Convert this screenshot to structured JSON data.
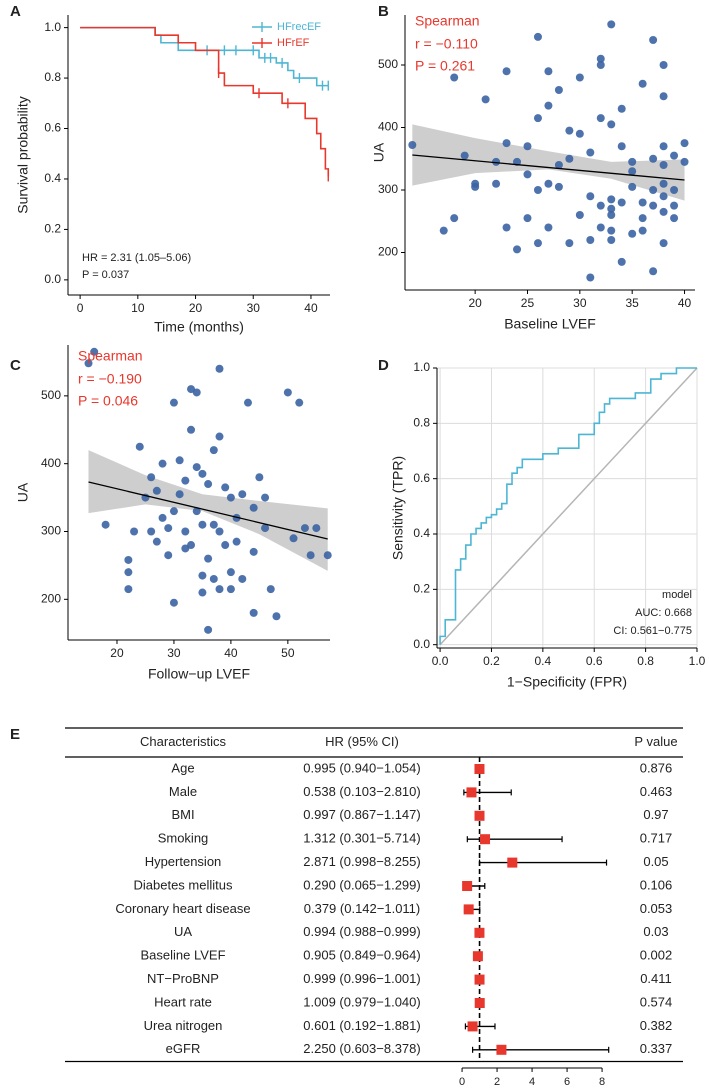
{
  "chart_data": [
    {
      "type": "step",
      "panel": "A",
      "xlabel": "Time (months)",
      "ylabel": "Survival probability",
      "xlim": [
        -2.1,
        43.3
      ],
      "xticks": [
        0,
        10,
        20,
        30,
        40
      ],
      "ylim": [
        -0.06,
        1.05
      ],
      "yticks": [
        {
          "value": 0,
          "label": "0.0"
        },
        {
          "value": 0.2,
          "label": "0.2"
        },
        {
          "value": 0.4,
          "label": "0.4"
        },
        {
          "value": 0.6,
          "label": "0.6"
        },
        {
          "value": 0.8,
          "label": "0.8"
        },
        {
          "value": 1,
          "label": "1.0"
        }
      ],
      "legend": "upper right",
      "annotations": [
        "HR = 2.31 (1.05–5.06)",
        "P = 0.037"
      ],
      "series": [
        {
          "name": "HFrecEF",
          "color": "#4db6d4",
          "x": [
            0,
            13,
            14,
            17,
            31,
            34,
            36,
            37,
            41
          ],
          "values": [
            1,
            0.97,
            0.94,
            0.91,
            0.88,
            0.86,
            0.83,
            0.8,
            0.77
          ],
          "censored": [
            22,
            25,
            27,
            30,
            32,
            33,
            35,
            38,
            42,
            43
          ]
        },
        {
          "name": "HFrEF",
          "color": "#e8372c",
          "x": [
            0,
            13,
            17,
            20,
            24,
            25,
            30,
            35,
            39,
            41,
            41.7,
            42.5,
            43
          ],
          "values": [
            1,
            0.97,
            0.94,
            0.91,
            0.82,
            0.77,
            0.74,
            0.7,
            0.64,
            0.58,
            0.52,
            0.44,
            0.41
          ],
          "censored": [
            24,
            31,
            36,
            43
          ]
        }
      ]
    },
    {
      "type": "scatter",
      "panel": "B",
      "xlabel": "Baseline LVEF",
      "ylabel": "UA",
      "xlim": [
        13.3,
        41
      ],
      "xticks": [
        20,
        25,
        30,
        35,
        40
      ],
      "ylim": [
        140,
        580
      ],
      "yticks": [
        200,
        300,
        400,
        500
      ],
      "annotations": [
        "Spearman",
        "r = −0.110",
        "P = 0.261"
      ],
      "annotation_color": "#e8372c",
      "color": "#3b64a3",
      "x": [
        14,
        17,
        18,
        18,
        19,
        20,
        20,
        21,
        22,
        22,
        23,
        23,
        23,
        24,
        24,
        25,
        25,
        25,
        26,
        26,
        26,
        26,
        27,
        27,
        27,
        27,
        28,
        28,
        28,
        29,
        29,
        29,
        30,
        30,
        30,
        31,
        31,
        31,
        31,
        32,
        32,
        32,
        32,
        32,
        33,
        33,
        33,
        33,
        33,
        33,
        33,
        34,
        34,
        34,
        34,
        35,
        35,
        35,
        35,
        36,
        36,
        36,
        36,
        37,
        37,
        37,
        37,
        37,
        38,
        38,
        38,
        38,
        38,
        38,
        38,
        38,
        39,
        39,
        39,
        39,
        40,
        40
      ],
      "values": [
        372,
        235,
        255,
        480,
        355,
        305,
        310,
        445,
        310,
        345,
        375,
        490,
        240,
        205,
        345,
        325,
        370,
        255,
        545,
        415,
        300,
        215,
        490,
        435,
        310,
        240,
        305,
        340,
        460,
        395,
        350,
        215,
        390,
        480,
        260,
        360,
        290,
        220,
        160,
        510,
        415,
        275,
        240,
        500,
        565,
        405,
        285,
        270,
        260,
        235,
        220,
        430,
        370,
        280,
        185,
        345,
        305,
        230,
        330,
        280,
        470,
        255,
        235,
        540,
        350,
        275,
        170,
        300,
        500,
        450,
        370,
        340,
        310,
        290,
        265,
        215,
        355,
        300,
        275,
        255,
        375,
        345
      ],
      "fit": {
        "x": [
          14,
          40
        ],
        "values": [
          356,
          316
        ]
      },
      "ci": {
        "x": [
          14,
          20,
          27,
          33,
          40
        ],
        "lower": [
          307,
          327,
          333,
          318,
          283
        ],
        "upper": [
          405,
          383,
          362,
          345,
          349
        ]
      }
    },
    {
      "type": "scatter",
      "panel": "C",
      "xlabel": "Follow−up LVEF",
      "ylabel": "UA",
      "xlim": [
        11.4,
        57.4
      ],
      "xticks": [
        20,
        30,
        40,
        50
      ],
      "ylim": [
        140,
        575
      ],
      "yticks": [
        200,
        300,
        400,
        500
      ],
      "annotations": [
        "Spearman",
        "r = −0.190",
        "P = 0.046"
      ],
      "annotation_color": "#e8372c",
      "color": "#3b64a3",
      "x": [
        15,
        16,
        18,
        22,
        22,
        22,
        23,
        24,
        25,
        26,
        26,
        27,
        27,
        28,
        28,
        29,
        29,
        30,
        30,
        30,
        31,
        31,
        32,
        32,
        32,
        33,
        33,
        33,
        34,
        34,
        34,
        35,
        35,
        35,
        35,
        36,
        36,
        36,
        37,
        37,
        37,
        38,
        38,
        38,
        38,
        39,
        39,
        40,
        40,
        40,
        41,
        41,
        42,
        42,
        43,
        44,
        44,
        44,
        45,
        46,
        46,
        47,
        48,
        50,
        51,
        52,
        53,
        54,
        55,
        57
      ],
      "values": [
        548,
        565,
        310,
        258,
        240,
        215,
        300,
        425,
        350,
        300,
        380,
        285,
        360,
        320,
        400,
        305,
        265,
        195,
        330,
        490,
        405,
        355,
        300,
        375,
        275,
        510,
        450,
        280,
        395,
        330,
        505,
        235,
        310,
        210,
        385,
        370,
        260,
        155,
        420,
        310,
        230,
        540,
        440,
        300,
        215,
        365,
        280,
        350,
        240,
        215,
        285,
        320,
        230,
        355,
        490,
        270,
        335,
        180,
        380,
        350,
        305,
        215,
        175,
        505,
        290,
        490,
        305,
        265,
        305,
        265
      ],
      "fit": {
        "x": [
          15,
          57
        ],
        "values": [
          373,
          289
        ]
      },
      "ci": {
        "x": [
          15,
          25,
          35,
          45,
          57
        ],
        "lower": [
          327,
          340,
          330,
          296,
          242
        ],
        "upper": [
          420,
          383,
          355,
          345,
          334
        ]
      }
    },
    {
      "type": "line",
      "panel": "D",
      "xlabel": "1−Specificity (FPR)",
      "ylabel": "Sensitivity (TPR)",
      "xlim": [
        -0.012,
        1
      ],
      "xticks": [
        {
          "value": 0,
          "label": "0.0"
        },
        {
          "value": 0.2,
          "label": "0.2"
        },
        {
          "value": 0.4,
          "label": "0.4"
        },
        {
          "value": 0.6,
          "label": "0.6"
        },
        {
          "value": 0.8,
          "label": "0.8"
        },
        {
          "value": 1,
          "label": "1.0"
        }
      ],
      "ylim": [
        -0.012,
        1
      ],
      "yticks": [
        {
          "value": 0,
          "label": "0.0"
        },
        {
          "value": 0.2,
          "label": "0.2"
        },
        {
          "value": 0.4,
          "label": "0.4"
        },
        {
          "value": 0.6,
          "label": "0.6"
        },
        {
          "value": 0.8,
          "label": "0.8"
        },
        {
          "value": 1,
          "label": "1.0"
        }
      ],
      "grid": true,
      "diagonal": true,
      "annotations": [
        "model",
        "AUC: 0.668",
        "CI: 0.561−0.775"
      ],
      "series": [
        {
          "color": "#4db6d4",
          "x": [
            0,
            0,
            0.02,
            0.02,
            0.06,
            0.06,
            0.08,
            0.08,
            0.1,
            0.1,
            0.12,
            0.12,
            0.14,
            0.14,
            0.16,
            0.16,
            0.18,
            0.18,
            0.2,
            0.2,
            0.22,
            0.22,
            0.24,
            0.24,
            0.26,
            0.26,
            0.28,
            0.28,
            0.3,
            0.3,
            0.32,
            0.32,
            0.4,
            0.4,
            0.46,
            0.46,
            0.54,
            0.54,
            0.6,
            0.6,
            0.62,
            0.62,
            0.64,
            0.64,
            0.66,
            0.66,
            0.76,
            0.76,
            0.82,
            0.82,
            0.86,
            0.86,
            0.92,
            0.92,
            1
          ],
          "values": [
            0,
            0.03,
            0.03,
            0.09,
            0.09,
            0.27,
            0.27,
            0.31,
            0.31,
            0.36,
            0.36,
            0.4,
            0.4,
            0.42,
            0.42,
            0.44,
            0.44,
            0.46,
            0.46,
            0.47,
            0.47,
            0.49,
            0.49,
            0.51,
            0.51,
            0.58,
            0.58,
            0.62,
            0.62,
            0.64,
            0.64,
            0.67,
            0.67,
            0.69,
            0.69,
            0.71,
            0.71,
            0.76,
            0.76,
            0.8,
            0.8,
            0.84,
            0.84,
            0.87,
            0.87,
            0.89,
            0.89,
            0.91,
            0.91,
            0.96,
            0.96,
            0.98,
            0.98,
            1,
            1
          ]
        }
      ]
    },
    {
      "type": "forest",
      "panel": "E",
      "columns": [
        "Characteristics",
        "HR (95% CI)",
        "P value"
      ],
      "xlim": [
        -1.26,
        9.31
      ],
      "xticks": [
        0,
        2,
        4,
        6,
        8
      ],
      "ref": 1,
      "color": "#e8372c",
      "rows": [
        {
          "name": "Age",
          "hr_ci": "0.995 (0.940−1.054)",
          "hr": 0.995,
          "lower": 0.94,
          "upper": 1.054,
          "p": 0.876
        },
        {
          "name": "Male",
          "hr_ci": "0.538 (0.103−2.810)",
          "hr": 0.538,
          "lower": 0.103,
          "upper": 2.81,
          "p": 0.463
        },
        {
          "name": "BMI",
          "hr_ci": "0.997 (0.867−1.147)",
          "hr": 0.997,
          "lower": 0.867,
          "upper": 1.147,
          "p": 0.97
        },
        {
          "name": "Smoking",
          "hr_ci": "1.312 (0.301−5.714)",
          "hr": 1.312,
          "lower": 0.301,
          "upper": 5.714,
          "p": 0.717
        },
        {
          "name": "Hypertension",
          "hr_ci": "2.871 (0.998−8.255)",
          "hr": 2.871,
          "lower": 0.998,
          "upper": 8.255,
          "p": 0.05
        },
        {
          "name": "Diabetes mellitus",
          "hr_ci": "0.290 (0.065−1.299)",
          "hr": 0.29,
          "lower": 0.065,
          "upper": 1.299,
          "p": 0.106
        },
        {
          "name": "Coronary heart disease",
          "hr_ci": "0.379 (0.142−1.011)",
          "hr": 0.379,
          "lower": 0.142,
          "upper": 1.011,
          "p": 0.053
        },
        {
          "name": "UA",
          "hr_ci": "0.994 (0.988−0.999)",
          "hr": 0.994,
          "lower": 0.988,
          "upper": 0.999,
          "p": 0.03
        },
        {
          "name": "Baseline LVEF",
          "hr_ci": "0.905 (0.849−0.964)",
          "hr": 0.905,
          "lower": 0.849,
          "upper": 0.964,
          "p": 0.002
        },
        {
          "name": "NT−ProBNP",
          "hr_ci": "0.999 (0.996−1.001)",
          "hr": 0.999,
          "lower": 0.996,
          "upper": 1.001,
          "p": 0.411
        },
        {
          "name": "Heart rate",
          "hr_ci": "1.009 (0.979−1.040)",
          "hr": 1.009,
          "lower": 0.979,
          "upper": 1.04,
          "p": 0.574
        },
        {
          "name": "Urea nitrogen",
          "hr_ci": "0.601 (0.192−1.881)",
          "hr": 0.601,
          "lower": 0.192,
          "upper": 1.881,
          "p": 0.382
        },
        {
          "name": "eGFR",
          "hr_ci": "2.250 (0.603−8.378)",
          "hr": 2.25,
          "lower": 0.603,
          "upper": 8.378,
          "p": 0.337
        }
      ]
    }
  ]
}
